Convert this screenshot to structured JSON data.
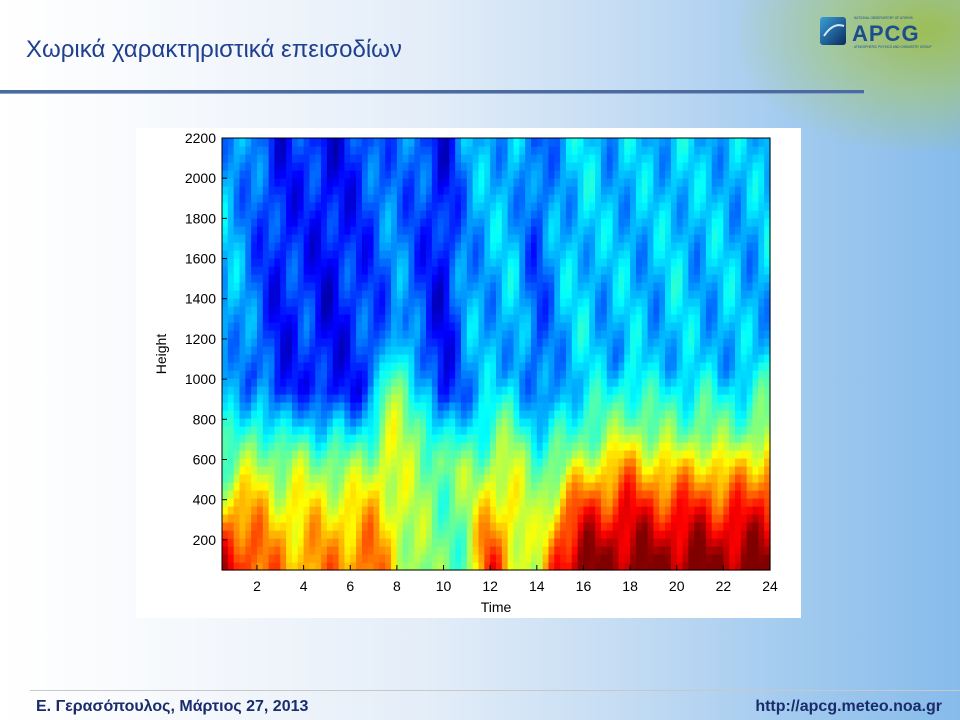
{
  "slide": {
    "title": "Χωρικά χαρακτηριστικά επεισοδίων",
    "footer_left": "Ε. Γερασόπουλος, Μάρτιος 27, 2013",
    "footer_right": "http://apcg.meteo.noa.gr"
  },
  "logo": {
    "text": "APCG",
    "line1": "NATIONAL OBSERVATORY OF ATHENS",
    "line2": "ATMOSPHERIC PHYSICS AND CHEMISTRY GROUP",
    "icon": "globe-icon",
    "colors": {
      "text": "#1b4f8c",
      "globe_dark": "#0a2a5e",
      "globe_light": "#3aa0d8"
    }
  },
  "chart_data": {
    "type": "heatmap",
    "title": "",
    "xlabel": "Time",
    "ylabel": "Height",
    "xlim": [
      0.5,
      24
    ],
    "ylim": [
      50,
      2200
    ],
    "xticks": [
      2,
      4,
      6,
      8,
      10,
      12,
      14,
      16,
      18,
      20,
      22,
      24
    ],
    "yticks": [
      200,
      400,
      600,
      800,
      1000,
      1200,
      1400,
      1600,
      1800,
      2000,
      2200
    ],
    "colormap": "jet",
    "value_range": [
      0,
      1
    ],
    "x": [
      1,
      2,
      3,
      4,
      5,
      6,
      7,
      8,
      9,
      10,
      11,
      12,
      13,
      14,
      15,
      16,
      17,
      18,
      19,
      20,
      21,
      22,
      23,
      24
    ],
    "boundary_height": [
      520,
      700,
      580,
      620,
      600,
      560,
      650,
      1050,
      760,
      560,
      560,
      620,
      720,
      560,
      540,
      680,
      700,
      820,
      720,
      700,
      760,
      680,
      740,
      800
    ],
    "surface_peak": [
      0.92,
      0.78,
      0.74,
      0.72,
      0.74,
      0.76,
      0.78,
      0.62,
      0.52,
      0.46,
      0.5,
      0.86,
      0.66,
      0.52,
      0.92,
      1,
      1,
      1,
      1,
      1,
      1,
      1,
      1,
      1
    ],
    "upper_level": [
      0.3,
      0.22,
      0.14,
      0.18,
      0.12,
      0.16,
      0.2,
      0.26,
      0.2,
      0.12,
      0.28,
      0.3,
      0.32,
      0.2,
      0.3,
      0.34,
      0.3,
      0.32,
      0.3,
      0.34,
      0.3,
      0.32,
      0.3,
      0.32
    ],
    "grid": false
  }
}
